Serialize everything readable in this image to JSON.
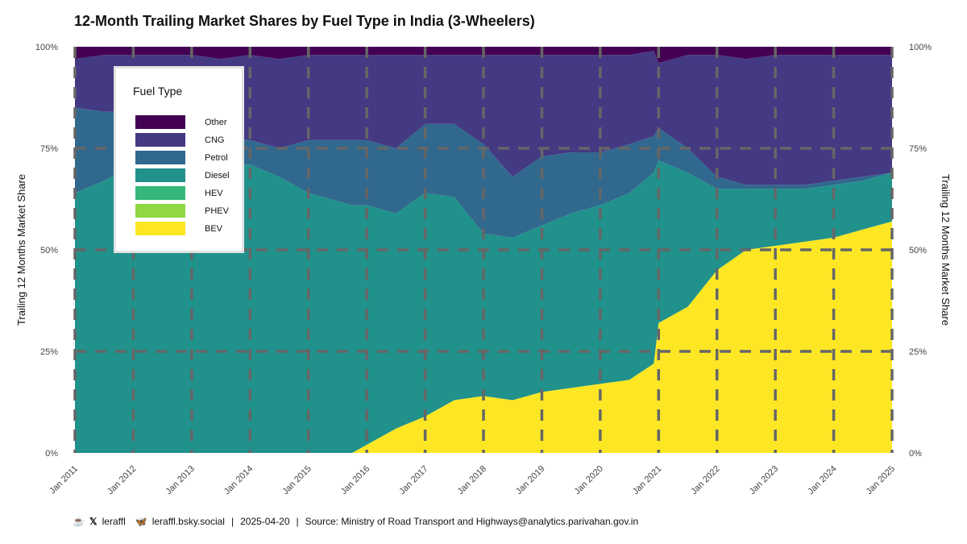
{
  "title": "12-Month Trailing Market Shares by Fuel Type in India (3-Wheelers)",
  "footer": {
    "x_handle": "leraffl",
    "bsky_handle": "leraffl.bsky.social",
    "date": "2025-04-20",
    "source": "Source: Ministry of Road Transport and Highways@analytics.parivahan.gov.in"
  },
  "legend": {
    "title": "Fuel Type"
  },
  "chart_data": {
    "type": "area",
    "title": "12-Month Trailing Market Shares by Fuel Type in India (3-Wheelers)",
    "xlabel": "",
    "ylabel": "Trailing 12 Months Market Share",
    "ylabel_right": "Trailing 12 Months Market Share",
    "x_ticks": [
      "Jan 2011",
      "Jan 2012",
      "Jan 2013",
      "Jan 2014",
      "Jan 2015",
      "Jan 2016",
      "Jan 2017",
      "Jan 2018",
      "Jan 2019",
      "Jan 2020",
      "Jan 2021",
      "Jan 2022",
      "Jan 2023",
      "Jan 2024",
      "Jan 2025"
    ],
    "y_ticks": [
      "0%",
      "25%",
      "50%",
      "75%",
      "100%"
    ],
    "ylim": [
      0,
      100
    ],
    "grid": true,
    "legend_position": "top-left",
    "stack_order": [
      "BEV",
      "PHEV",
      "HEV",
      "Diesel",
      "Petrol",
      "CNG",
      "Other"
    ],
    "x": [
      "Jan 2011",
      "Jul 2011",
      "Jan 2012",
      "Jul 2012",
      "Jan 2013",
      "Jul 2013",
      "Jan 2014",
      "Jul 2014",
      "Jan 2015",
      "Jul 2015",
      "Oct 2015",
      "Jan 2016",
      "Jul 2016",
      "Jan 2017",
      "Jul 2017",
      "Jan 2018",
      "Jul 2018",
      "Jan 2019",
      "Jul 2019",
      "Jan 2020",
      "Jul 2020",
      "Dec 2020",
      "Jan 2021",
      "Jul 2021",
      "Jan 2022",
      "Jul 2022",
      "Jan 2023",
      "Jul 2023",
      "Jan 2024",
      "Jul 2024",
      "Jan 2025"
    ],
    "series": [
      {
        "name": "BEV",
        "color": "#fde725",
        "values": [
          0,
          0,
          0,
          0,
          0,
          0,
          0,
          0,
          0,
          0,
          0,
          2,
          6,
          9,
          13,
          14,
          13,
          15,
          16,
          17,
          18,
          22,
          32,
          36,
          45,
          50,
          51,
          52,
          53,
          55,
          57
        ]
      },
      {
        "name": "PHEV",
        "color": "#90d743",
        "values": [
          0,
          0,
          0,
          0,
          0,
          0,
          0,
          0,
          0,
          0,
          0,
          0,
          0,
          0,
          0,
          0,
          0,
          0,
          0,
          0,
          0,
          0,
          0,
          0,
          0,
          0,
          0,
          0,
          0,
          0,
          0
        ]
      },
      {
        "name": "HEV",
        "color": "#35b779",
        "values": [
          0,
          0,
          0,
          0,
          0,
          0,
          0,
          0,
          0,
          0,
          0,
          0,
          0,
          0,
          0,
          0,
          0,
          0,
          0,
          0,
          0,
          0,
          0,
          0,
          0,
          0,
          0,
          0,
          0,
          0,
          0
        ]
      },
      {
        "name": "Diesel",
        "color": "#21918c",
        "values": [
          64,
          67,
          71,
          72,
          73,
          71,
          71,
          68,
          64,
          62,
          61,
          59,
          53,
          55,
          50,
          40,
          40,
          41,
          43,
          44,
          46,
          47,
          40,
          33,
          20,
          15,
          14,
          13,
          13,
          12,
          12
        ]
      },
      {
        "name": "Petrol",
        "color": "#31688e",
        "values": [
          21,
          17,
          13,
          11,
          9,
          7,
          6,
          7,
          13,
          15,
          16,
          16,
          16,
          17,
          18,
          22,
          15,
          17,
          15,
          13,
          12,
          9,
          8,
          6,
          3,
          1,
          1,
          1,
          1,
          1,
          0
        ]
      },
      {
        "name": "CNG",
        "color": "#443983",
        "values": [
          12,
          14,
          14,
          15,
          16,
          19,
          21,
          22,
          21,
          21,
          21,
          21,
          23,
          17,
          17,
          22,
          30,
          25,
          24,
          24,
          22,
          21,
          16,
          23,
          30,
          31,
          32,
          32,
          31,
          30,
          29
        ]
      },
      {
        "name": "Other",
        "color": "#440154",
        "values": [
          3,
          2,
          2,
          2,
          2,
          3,
          2,
          3,
          2,
          2,
          2,
          2,
          2,
          2,
          2,
          2,
          2,
          2,
          2,
          2,
          2,
          1,
          4,
          2,
          2,
          3,
          2,
          2,
          2,
          2,
          2
        ]
      }
    ]
  }
}
